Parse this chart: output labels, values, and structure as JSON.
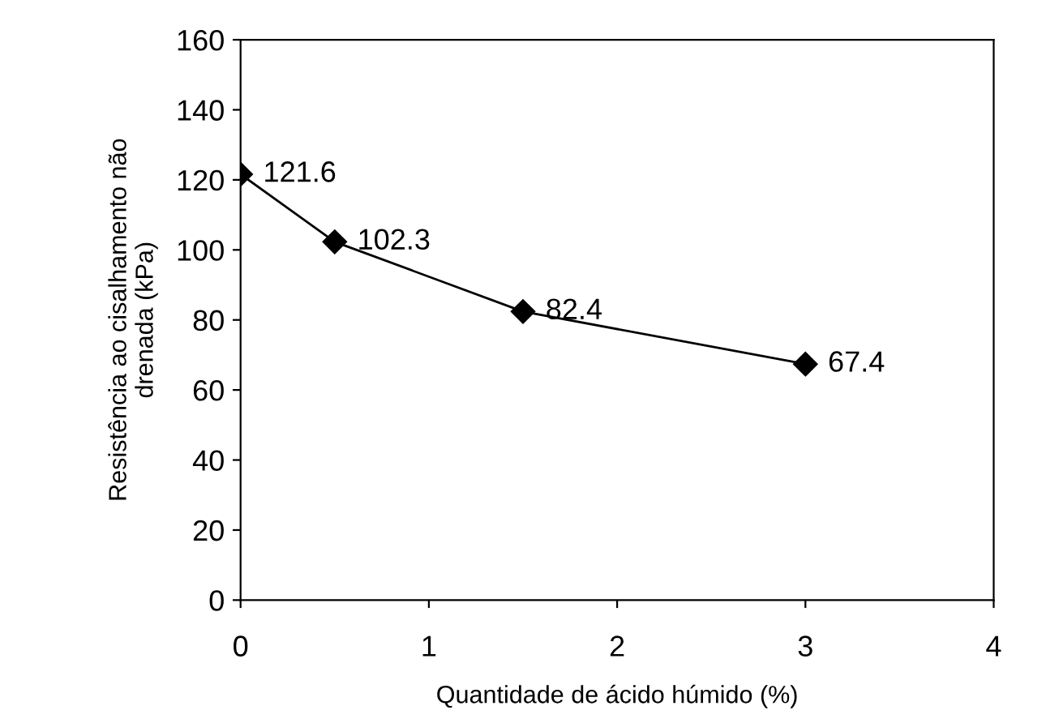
{
  "chart_data": {
    "type": "line",
    "xlabel": "Quantidade de ácido húmido (%)",
    "ylabel": "Resistência ao cisalhamento não\ndrenada (kPa)",
    "x": [
      0,
      0.5,
      1.5,
      3
    ],
    "series": [
      {
        "color": "#000000",
        "values": [
          121.6,
          102.3,
          82.4,
          67.4
        ]
      }
    ],
    "xlim": [
      0,
      4
    ],
    "xticks": [
      0,
      1,
      2,
      3,
      4
    ],
    "ylim": [
      0,
      160
    ],
    "yticks": [
      0,
      20,
      40,
      60,
      80,
      100,
      120,
      140,
      160
    ],
    "marker": "diamond",
    "line_style": "solid",
    "data_labels": true,
    "grid": false,
    "legend": false
  }
}
